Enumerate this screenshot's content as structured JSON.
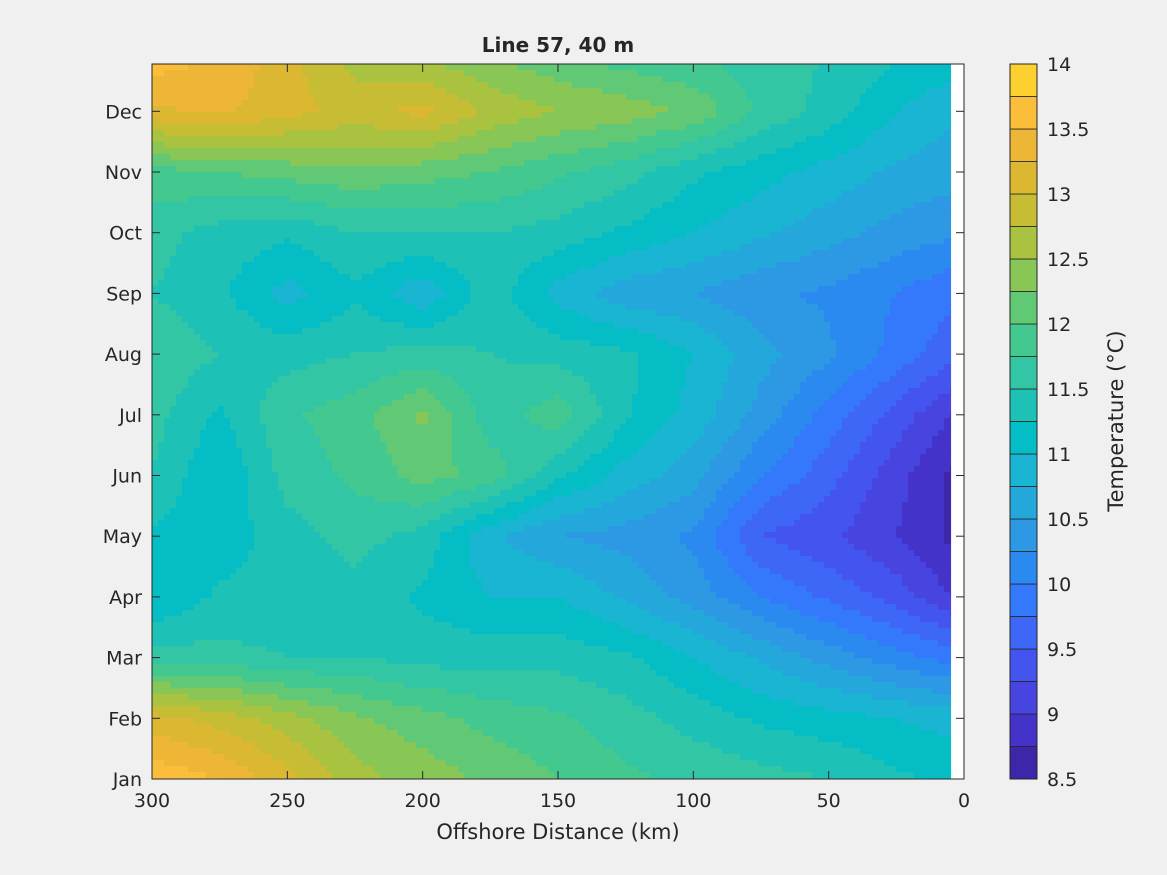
{
  "chart_data": {
    "type": "heatmap",
    "title": "Line 57, 40 m",
    "xlabel": "Offshore Distance (km)",
    "ylabel": "",
    "xlim": [
      0,
      300
    ],
    "x_reversed": true,
    "x_ticks": [
      300,
      250,
      200,
      150,
      100,
      50,
      0
    ],
    "y_ticks": [
      "Jan",
      "Feb",
      "Mar",
      "Apr",
      "May",
      "Jun",
      "Jul",
      "Aug",
      "Sep",
      "Oct",
      "Nov",
      "Dec"
    ],
    "colorbar": {
      "label": "Temperature (°C)",
      "range": [
        8.5,
        14
      ],
      "levels": [
        8.5,
        8.75,
        9,
        9.25,
        9.5,
        9.75,
        10,
        10.25,
        10.5,
        10.75,
        11,
        11.25,
        11.5,
        11.75,
        12,
        12.25,
        12.5,
        12.75,
        13,
        13.25,
        13.5,
        13.75,
        14
      ],
      "ticks": [
        8.5,
        9,
        9.5,
        10,
        10.5,
        11,
        11.5,
        12,
        12.5,
        13,
        13.5,
        14
      ],
      "tick_labels": [
        "8.5",
        "9",
        "9.5",
        "10",
        "10.5",
        "11",
        "11.5",
        "12",
        "12.5",
        "13",
        "13.5",
        "14"
      ],
      "colors": [
        "#3e26a8",
        "#4433c8",
        "#4744e0",
        "#4355ee",
        "#3f67f7",
        "#3479fb",
        "#2a8af0",
        "#2d99e5",
        "#24a8db",
        "#19b5d2",
        "#05bdc5",
        "#1ec1b6",
        "#33c6a4",
        "#43c88f",
        "#61c875",
        "#88c656",
        "#a9c23f",
        "#c6bd35",
        "#dcb832",
        "#eeb637",
        "#fbbe3b",
        "#fbd02f",
        "#f5e422"
      ]
    },
    "x": [
      300,
      275,
      250,
      225,
      200,
      175,
      150,
      125,
      100,
      75,
      50,
      25,
      5
    ],
    "months": [
      "Jan",
      "Feb",
      "Mar",
      "Apr",
      "May",
      "Jun",
      "Jul",
      "Aug",
      "Sep",
      "Oct",
      "Nov",
      "Dec",
      "Jan"
    ],
    "values": [
      [
        13.7,
        13.5,
        13.1,
        12.6,
        12.4,
        12.2,
        12.0,
        11.8,
        11.7,
        11.6,
        11.5,
        11.3,
        11.2
      ],
      [
        13.1,
        12.9,
        12.6,
        12.3,
        12.1,
        11.9,
        11.8,
        11.6,
        11.4,
        11.2,
        11.1,
        11.0,
        10.9
      ],
      [
        11.6,
        11.6,
        11.5,
        11.5,
        11.4,
        11.4,
        11.4,
        11.3,
        11.0,
        10.7,
        10.4,
        10.1,
        9.9
      ],
      [
        11.0,
        11.3,
        11.3,
        11.4,
        11.2,
        11.0,
        11.0,
        10.7,
        10.4,
        10.0,
        9.7,
        9.4,
        9.0
      ],
      [
        11.2,
        11.1,
        11.4,
        11.6,
        11.4,
        10.8,
        10.5,
        10.4,
        10.2,
        9.5,
        9.3,
        9.0,
        8.7
      ],
      [
        11.5,
        11.0,
        11.6,
        11.8,
        12.1,
        11.9,
        11.3,
        10.9,
        10.6,
        10.0,
        9.6,
        9.1,
        8.7
      ],
      [
        11.6,
        11.2,
        11.7,
        11.9,
        12.3,
        11.6,
        11.9,
        11.3,
        10.9,
        10.4,
        9.9,
        9.4,
        9.0
      ],
      [
        11.7,
        11.5,
        11.4,
        11.5,
        11.6,
        11.5,
        11.4,
        11.3,
        11.0,
        10.6,
        10.3,
        9.9,
        9.6
      ],
      [
        11.5,
        11.3,
        10.9,
        11.2,
        10.8,
        11.4,
        10.9,
        10.6,
        10.5,
        10.3,
        10.2,
        10.0,
        9.8
      ],
      [
        11.6,
        11.4,
        11.3,
        11.5,
        11.5,
        11.5,
        11.4,
        11.2,
        11.0,
        10.8,
        10.6,
        10.4,
        10.3
      ],
      [
        11.9,
        12.0,
        12.1,
        12.2,
        12.1,
        12.0,
        11.8,
        11.6,
        11.3,
        11.1,
        10.9,
        10.7,
        10.6
      ],
      [
        13.2,
        13.3,
        13.1,
        12.9,
        13.1,
        12.7,
        12.5,
        12.4,
        12.2,
        11.7,
        11.4,
        11.0,
        10.8
      ],
      [
        13.7,
        13.5,
        13.1,
        12.6,
        12.4,
        12.2,
        12.0,
        11.8,
        11.7,
        11.6,
        11.5,
        11.3,
        11.2
      ]
    ]
  }
}
